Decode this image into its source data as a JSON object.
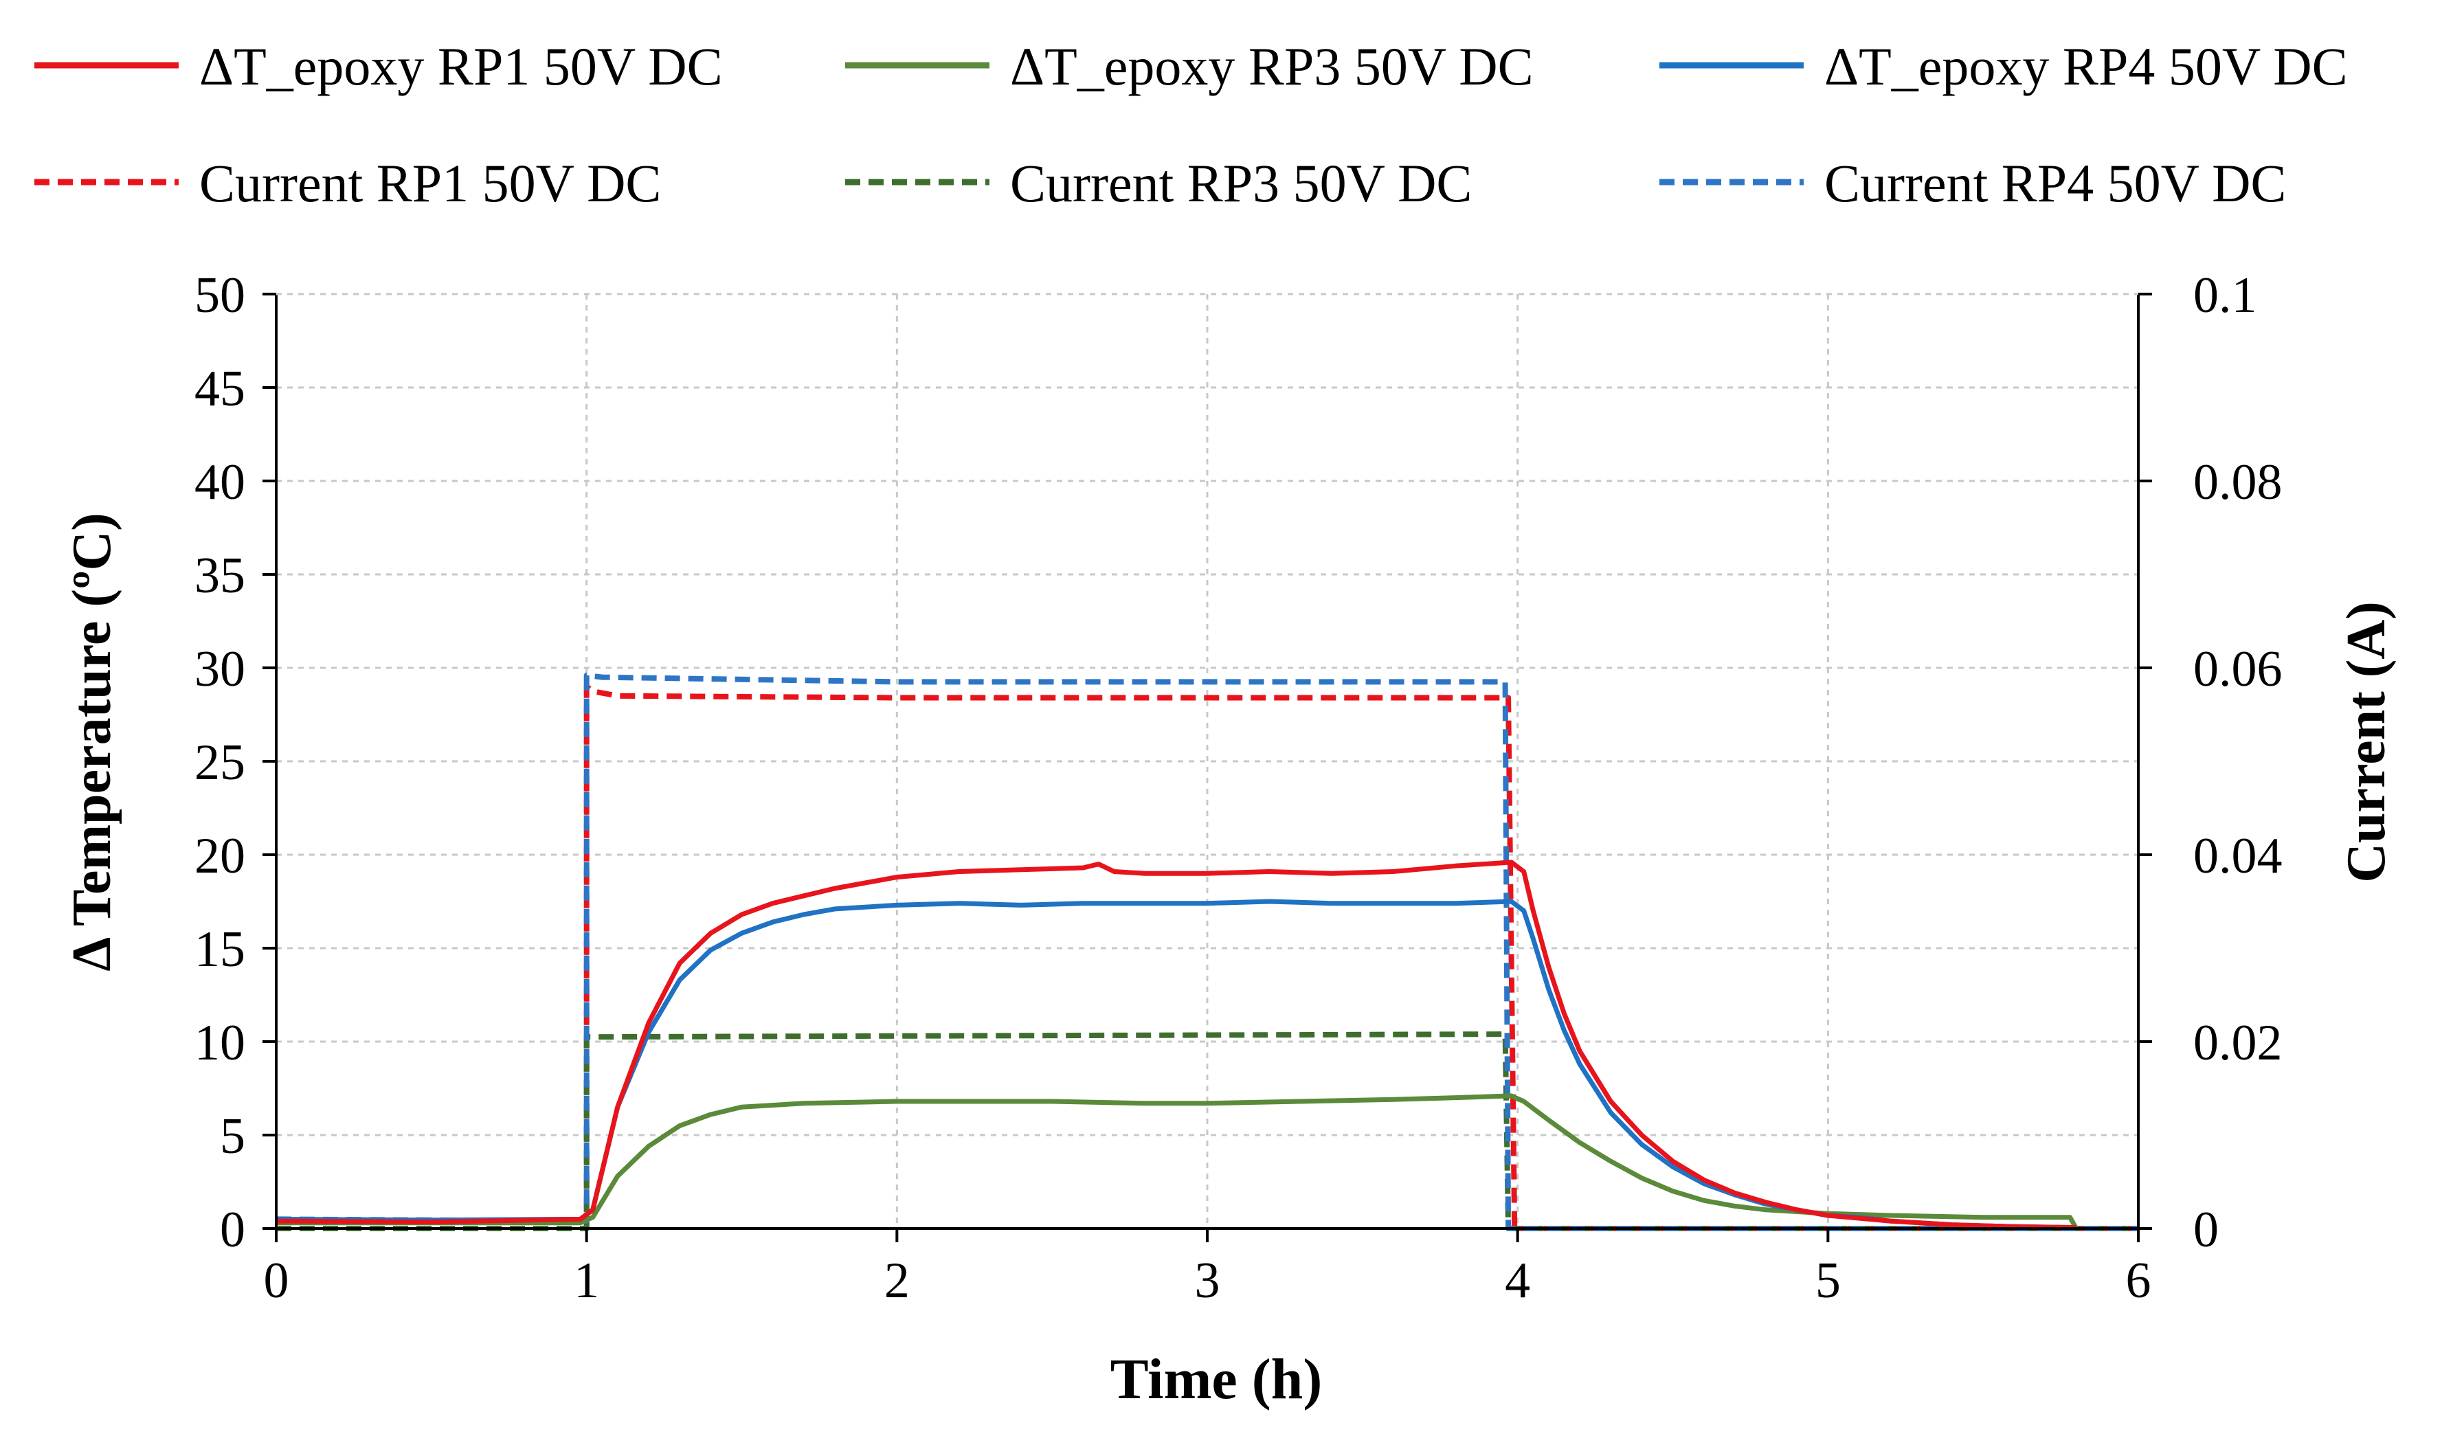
{
  "chart_data": {
    "type": "line",
    "title": "",
    "xlabel": "Time (h)",
    "ylabel_left": "Δ Temperature (ºC)",
    "ylabel_right": "Current (A)",
    "xlim": [
      0,
      6
    ],
    "ylim_left": [
      0,
      50
    ],
    "ylim_right": [
      0,
      0.1
    ],
    "x_ticks": [
      "0",
      "1",
      "2",
      "3",
      "4",
      "5",
      "6"
    ],
    "y_left_ticks": [
      "0",
      "5",
      "10",
      "15",
      "20",
      "25",
      "30",
      "35",
      "40",
      "45",
      "50"
    ],
    "y_right_ticks": [
      "0",
      "0.02",
      "0.04",
      "0.06",
      "0.08",
      "0.1"
    ],
    "grid": true,
    "legend_position": "top",
    "series": [
      {
        "name": "ΔT_epoxy RP1 50V DC",
        "axis": "left",
        "color": "#e8141c",
        "style": "solid",
        "points": [
          [
            0,
            0.4
          ],
          [
            0.5,
            0.35
          ],
          [
            0.98,
            0.5
          ],
          [
            1.02,
            1.0
          ],
          [
            1.1,
            6.5
          ],
          [
            1.2,
            11.0
          ],
          [
            1.3,
            14.2
          ],
          [
            1.4,
            15.8
          ],
          [
            1.5,
            16.8
          ],
          [
            1.6,
            17.4
          ],
          [
            1.7,
            17.8
          ],
          [
            1.8,
            18.2
          ],
          [
            2.0,
            18.8
          ],
          [
            2.2,
            19.1
          ],
          [
            2.4,
            19.2
          ],
          [
            2.6,
            19.3
          ],
          [
            2.65,
            19.5
          ],
          [
            2.7,
            19.1
          ],
          [
            2.8,
            19.0
          ],
          [
            3.0,
            19.0
          ],
          [
            3.2,
            19.1
          ],
          [
            3.4,
            19.0
          ],
          [
            3.6,
            19.1
          ],
          [
            3.8,
            19.4
          ],
          [
            3.98,
            19.6
          ],
          [
            4.02,
            19.1
          ],
          [
            4.05,
            17.0
          ],
          [
            4.1,
            14.0
          ],
          [
            4.15,
            11.5
          ],
          [
            4.2,
            9.5
          ],
          [
            4.3,
            6.8
          ],
          [
            4.4,
            5.0
          ],
          [
            4.5,
            3.6
          ],
          [
            4.6,
            2.6
          ],
          [
            4.7,
            1.9
          ],
          [
            4.8,
            1.4
          ],
          [
            4.9,
            1.0
          ],
          [
            5.0,
            0.7
          ],
          [
            5.2,
            0.4
          ],
          [
            5.4,
            0.2
          ],
          [
            5.6,
            0.1
          ],
          [
            5.8,
            0.05
          ]
        ]
      },
      {
        "name": "ΔT_epoxy RP3 50V DC",
        "axis": "left",
        "color": "#5b8a3a",
        "style": "solid",
        "points": [
          [
            0,
            0.3
          ],
          [
            0.5,
            0.3
          ],
          [
            0.98,
            0.3
          ],
          [
            1.02,
            0.6
          ],
          [
            1.1,
            2.8
          ],
          [
            1.2,
            4.4
          ],
          [
            1.3,
            5.5
          ],
          [
            1.4,
            6.1
          ],
          [
            1.5,
            6.5
          ],
          [
            1.7,
            6.7
          ],
          [
            2.0,
            6.8
          ],
          [
            2.5,
            6.8
          ],
          [
            2.8,
            6.7
          ],
          [
            3.0,
            6.7
          ],
          [
            3.3,
            6.8
          ],
          [
            3.6,
            6.9
          ],
          [
            3.8,
            7.0
          ],
          [
            3.98,
            7.1
          ],
          [
            4.02,
            6.8
          ],
          [
            4.1,
            5.8
          ],
          [
            4.2,
            4.6
          ],
          [
            4.3,
            3.6
          ],
          [
            4.4,
            2.7
          ],
          [
            4.5,
            2.0
          ],
          [
            4.6,
            1.5
          ],
          [
            4.7,
            1.2
          ],
          [
            4.8,
            1.0
          ],
          [
            5.0,
            0.8
          ],
          [
            5.2,
            0.7
          ],
          [
            5.5,
            0.6
          ],
          [
            5.78,
            0.6
          ],
          [
            5.8,
            0.0
          ]
        ]
      },
      {
        "name": "ΔT_epoxy RP4 50V DC",
        "axis": "left",
        "color": "#1f72c4",
        "style": "solid",
        "points": [
          [
            0,
            0.5
          ],
          [
            0.5,
            0.45
          ],
          [
            0.98,
            0.5
          ],
          [
            1.02,
            1.0
          ],
          [
            1.1,
            6.5
          ],
          [
            1.2,
            10.5
          ],
          [
            1.3,
            13.3
          ],
          [
            1.4,
            14.9
          ],
          [
            1.5,
            15.8
          ],
          [
            1.6,
            16.4
          ],
          [
            1.7,
            16.8
          ],
          [
            1.8,
            17.1
          ],
          [
            2.0,
            17.3
          ],
          [
            2.2,
            17.4
          ],
          [
            2.4,
            17.3
          ],
          [
            2.6,
            17.4
          ],
          [
            2.8,
            17.4
          ],
          [
            3.0,
            17.4
          ],
          [
            3.2,
            17.5
          ],
          [
            3.4,
            17.4
          ],
          [
            3.6,
            17.4
          ],
          [
            3.8,
            17.4
          ],
          [
            3.98,
            17.5
          ],
          [
            4.02,
            17.0
          ],
          [
            4.05,
            15.5
          ],
          [
            4.1,
            12.8
          ],
          [
            4.15,
            10.6
          ],
          [
            4.2,
            8.8
          ],
          [
            4.3,
            6.2
          ],
          [
            4.4,
            4.5
          ],
          [
            4.5,
            3.3
          ],
          [
            4.6,
            2.4
          ],
          [
            4.7,
            1.8
          ],
          [
            4.8,
            1.3
          ],
          [
            4.9,
            1.0
          ],
          [
            5.0,
            0.7
          ],
          [
            5.1,
            0.6
          ],
          [
            5.2,
            0.4
          ],
          [
            5.4,
            0.2
          ],
          [
            5.6,
            0.1
          ],
          [
            5.8,
            0.05
          ]
        ]
      },
      {
        "name": "Current RP1 50V DC",
        "axis": "right",
        "color": "#e8141c",
        "style": "dashed",
        "points": [
          [
            0,
            0
          ],
          [
            1.0,
            0
          ],
          [
            1.0,
            0.058
          ],
          [
            1.02,
            0.0575
          ],
          [
            1.1,
            0.057
          ],
          [
            2.0,
            0.0568
          ],
          [
            3.0,
            0.0568
          ],
          [
            3.97,
            0.0568
          ],
          [
            3.99,
            0.0
          ],
          [
            6.0,
            0.0
          ]
        ]
      },
      {
        "name": "Current RP3 50V DC",
        "axis": "right",
        "color": "#3d6e2e",
        "style": "dashed",
        "points": [
          [
            0,
            0
          ],
          [
            1.0,
            0
          ],
          [
            1.0,
            0.0205
          ],
          [
            2.0,
            0.0206
          ],
          [
            3.0,
            0.0207
          ],
          [
            3.96,
            0.0208
          ],
          [
            3.97,
            0.0
          ],
          [
            6.0,
            0.0
          ]
        ]
      },
      {
        "name": "Current RP4 50V DC",
        "axis": "right",
        "color": "#2e75c6",
        "style": "dashed",
        "points": [
          [
            0,
            0.001
          ],
          [
            0.97,
            0.0008
          ],
          [
            1.0,
            0.0008
          ],
          [
            1.0,
            0.0592
          ],
          [
            1.05,
            0.059
          ],
          [
            2.0,
            0.0585
          ],
          [
            3.0,
            0.0585
          ],
          [
            3.96,
            0.0585
          ],
          [
            3.97,
            0.0
          ],
          [
            6.0,
            0.0
          ]
        ]
      }
    ]
  }
}
